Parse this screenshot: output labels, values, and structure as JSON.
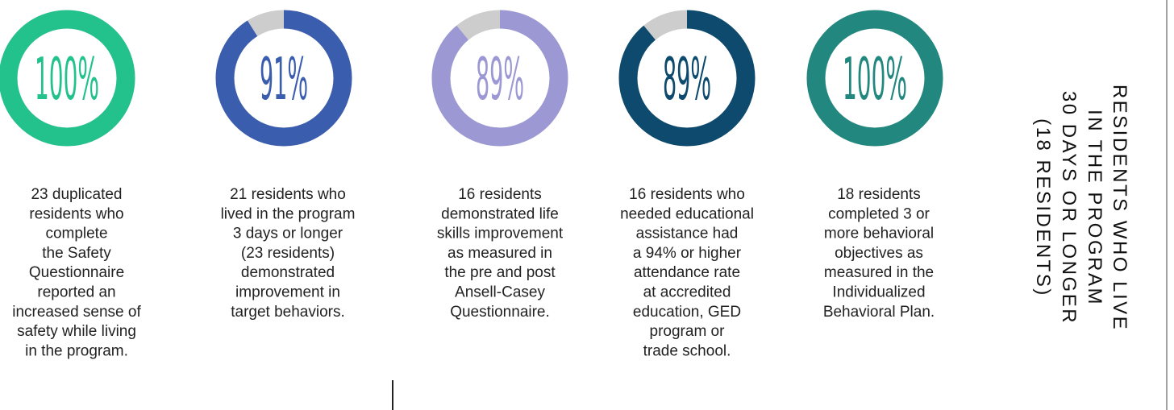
{
  "chart_data": [
    {
      "type": "donut",
      "values": [
        100
      ],
      "value_labels": [
        "100%"
      ],
      "color": "#23c28c",
      "description": [
        "23 duplicated",
        "residents who",
        "complete",
        "the Safety",
        "Questionnaire",
        "reported an",
        "increased sense of",
        "safety while living",
        "in the program."
      ]
    },
    {
      "type": "donut",
      "values": [
        91
      ],
      "value_labels": [
        "91%"
      ],
      "color": "#3b5dae",
      "description": [
        "21 residents who",
        "lived in the program",
        "3 days or longer",
        "(23 residents)",
        "demonstrated",
        "improvement in",
        "target behaviors."
      ]
    },
    {
      "type": "donut",
      "values": [
        89
      ],
      "value_labels": [
        "89%"
      ],
      "color": "#9c98d4",
      "description": [
        "16 residents",
        "demonstrated life",
        "skills improvement",
        "as measured in",
        "the pre and post",
        "Ansell-Casey",
        "Questionnaire."
      ]
    },
    {
      "type": "donut",
      "values": [
        89
      ],
      "value_labels": [
        "89%"
      ],
      "color": "#0d4a6e",
      "description": [
        "16 residents who",
        "needed educational",
        "assistance had",
        "a 94% or higher",
        "attendance rate",
        "at accredited",
        "education, GED",
        "program or",
        "trade school."
      ]
    },
    {
      "type": "donut",
      "values": [
        100
      ],
      "value_labels": [
        "100%"
      ],
      "color": "#22887f",
      "description": [
        "18 residents",
        "completed 3 or",
        "more behavioral",
        "objectives as",
        "measured in the",
        "Individualized",
        "Behavioral Plan."
      ]
    }
  ],
  "side_note": {
    "lines": [
      "RESIDENTS WHO LIVE",
      "IN THE PROGRAM",
      "30 DAYS OR LONGER",
      "(18 RESIDENTS)"
    ]
  }
}
